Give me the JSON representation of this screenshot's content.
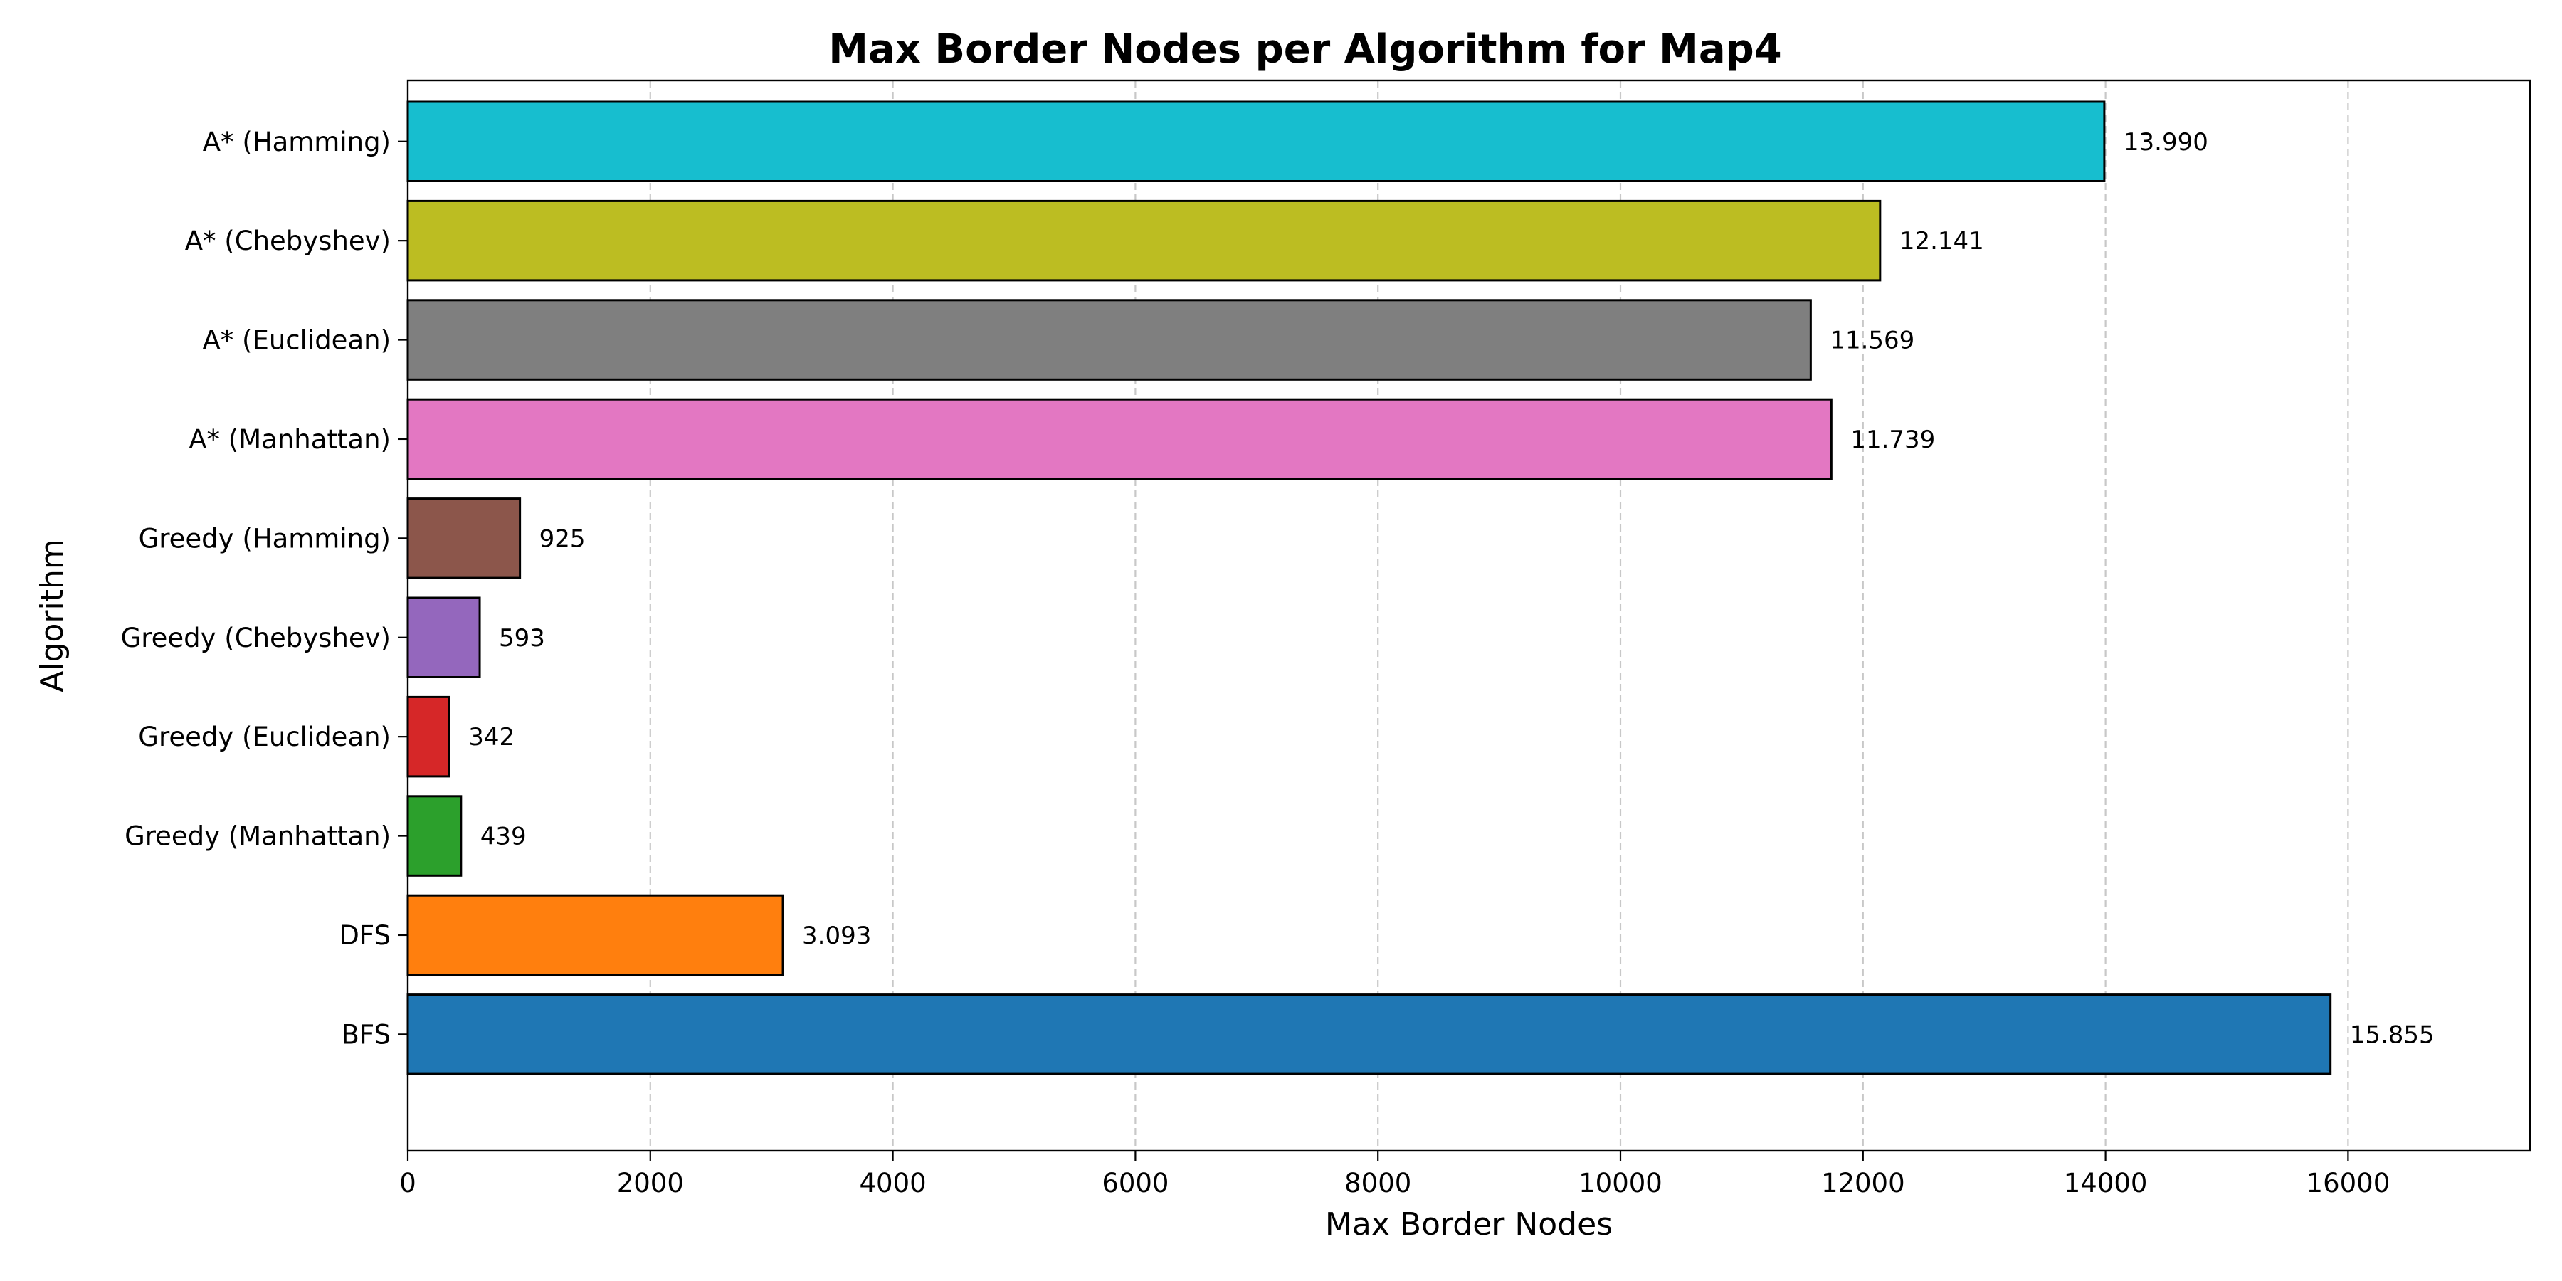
{
  "chart_data": {
    "type": "bar",
    "orientation": "horizontal",
    "title": "Max Border Nodes per Algorithm for Map4",
    "xlabel": "Max Border Nodes",
    "ylabel": "Algorithm",
    "xlim": [
      0,
      17500
    ],
    "x_ticks": [
      0,
      2000,
      4000,
      6000,
      8000,
      10000,
      12000,
      14000,
      16000
    ],
    "x_tick_labels": [
      "0",
      "2000",
      "4000",
      "6000",
      "8000",
      "10000",
      "12000",
      "14000",
      "16000"
    ],
    "grid": "x-dashed",
    "categories": [
      "BFS",
      "DFS",
      "Greedy (Manhattan)",
      "Greedy (Euclidean)",
      "Greedy (Chebyshev)",
      "Greedy (Hamming)",
      "A* (Manhattan)",
      "A* (Euclidean)",
      "A* (Chebyshev)",
      "A* (Hamming)"
    ],
    "values": [
      15855,
      3093,
      439,
      342,
      593,
      925,
      11739,
      11569,
      12141,
      13990
    ],
    "value_labels": [
      "15.855",
      "3.093",
      "439",
      "342",
      "593",
      "925",
      "11.739",
      "11.569",
      "12.141",
      "13.990"
    ],
    "colors": [
      "#1f77b4",
      "#ff7f0e",
      "#2ca02c",
      "#d62728",
      "#9467bd",
      "#8c564b",
      "#e377c2",
      "#7f7f7f",
      "#bcbd22",
      "#17becf"
    ],
    "bar_edge_color": "#000000"
  }
}
